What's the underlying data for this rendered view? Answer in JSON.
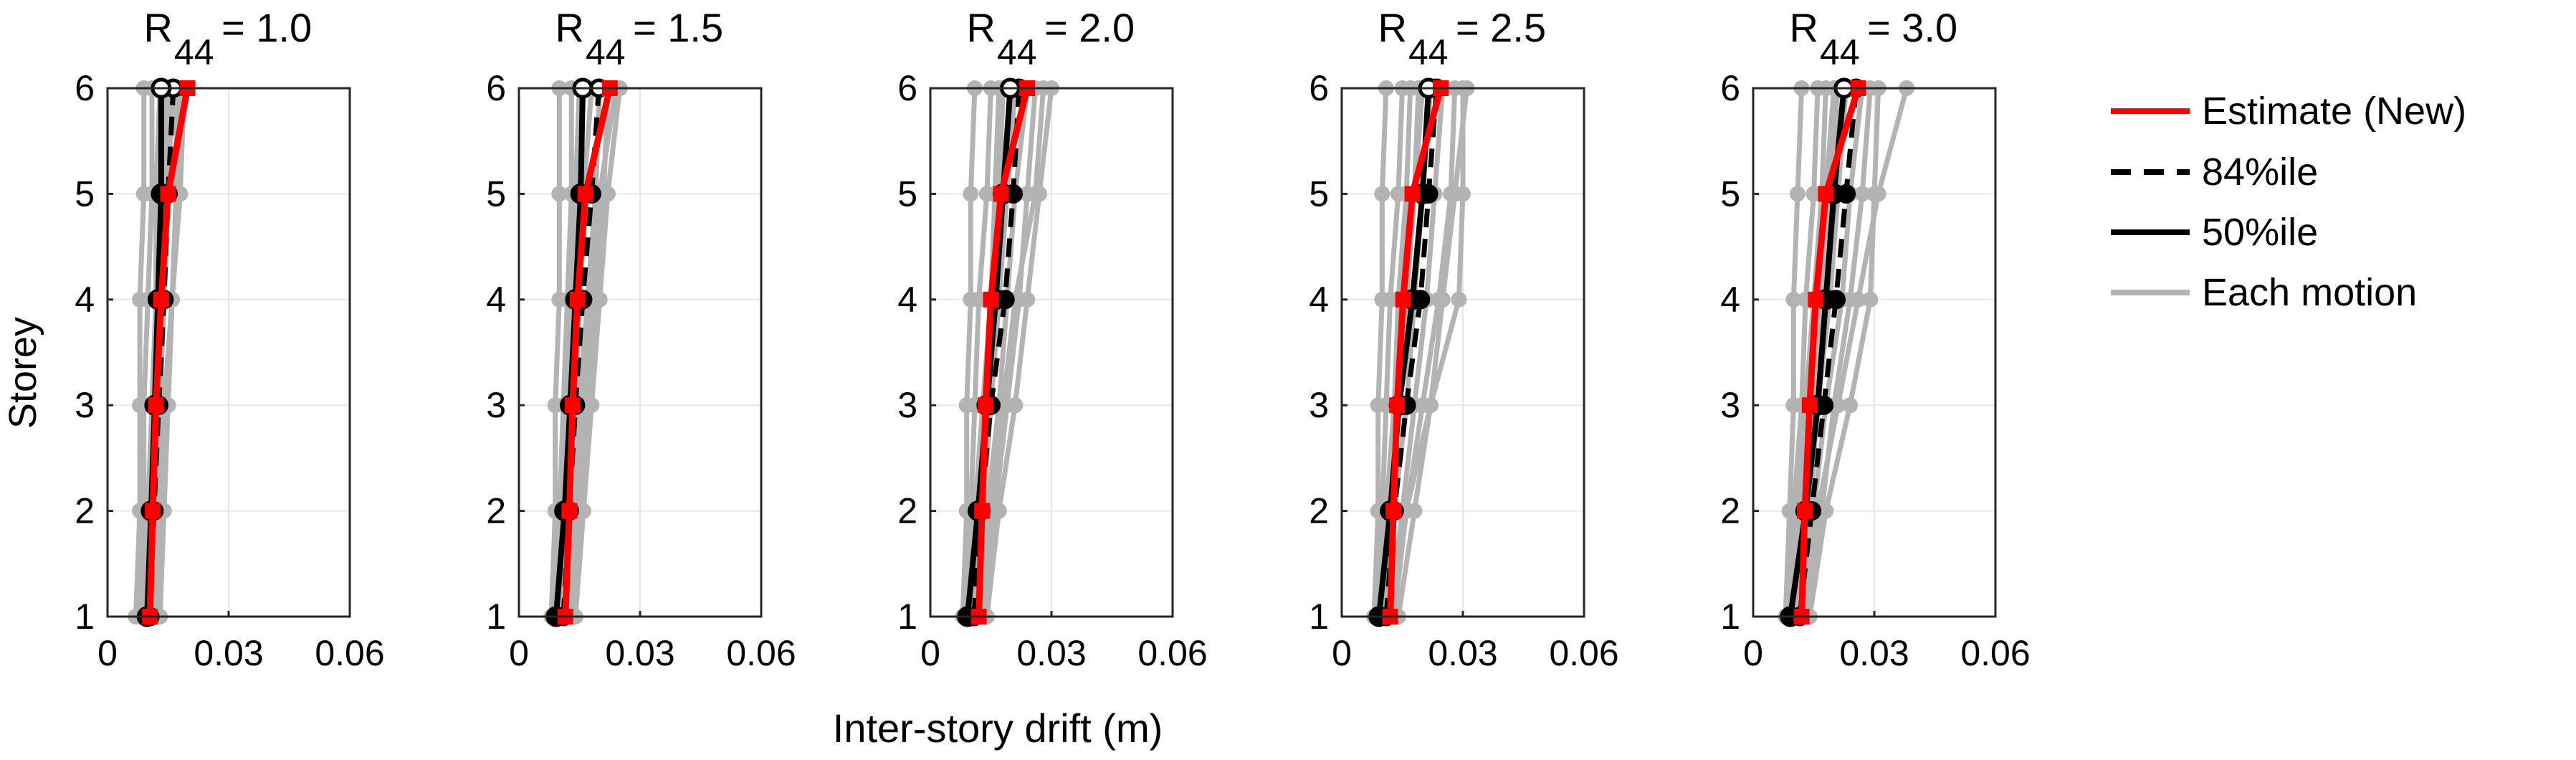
{
  "figure": {
    "ylabel": "Storey",
    "xlabel": "Inter-story drift (m)"
  },
  "legend": {
    "items": [
      {
        "label": "Estimate (New)",
        "color": "#ff0000",
        "style": "solid"
      },
      {
        "label": "84%ile",
        "color": "#000000",
        "style": "dashed"
      },
      {
        "label": "50%ile",
        "color": "#000000",
        "style": "solid"
      },
      {
        "label": "Each motion",
        "color": "#b3b3b3",
        "style": "solid"
      }
    ]
  },
  "colors": {
    "estimate": "#ff0000",
    "percentile": "#000000",
    "motion": "#b3b3b3",
    "grid": "#e6e6e6"
  },
  "chart_data": [
    {
      "type": "line",
      "title_base": "R",
      "title_sub": "44",
      "title_value": "= 1.0",
      "x_ticks": [
        "0",
        "0.03",
        "0.06"
      ],
      "y_ticks": [
        "1",
        "2",
        "3",
        "4",
        "5",
        "6"
      ],
      "xlim": [
        0,
        0.06
      ],
      "ylim": [
        1,
        6
      ],
      "grid": true,
      "storeys": [
        1,
        2,
        3,
        4,
        5,
        6
      ],
      "series": [
        {
          "name": "Estimate (New)",
          "values": [
            0.0105,
            0.0112,
            0.012,
            0.0133,
            0.015,
            0.0198
          ]
        },
        {
          "name": "84%ile",
          "values": [
            0.0105,
            0.0115,
            0.0127,
            0.014,
            0.015,
            0.0163
          ]
        },
        {
          "name": "50%ile",
          "values": [
            0.0098,
            0.0108,
            0.0117,
            0.0125,
            0.0133,
            0.0133
          ]
        }
      ],
      "motions": [
        [
          0.007,
          0.008,
          0.008,
          0.008,
          0.009,
          0.009
        ],
        [
          0.008,
          0.009,
          0.009,
          0.01,
          0.011,
          0.011
        ],
        [
          0.009,
          0.01,
          0.011,
          0.012,
          0.012,
          0.013
        ],
        [
          0.01,
          0.011,
          0.012,
          0.013,
          0.014,
          0.015
        ],
        [
          0.011,
          0.012,
          0.013,
          0.014,
          0.015,
          0.016
        ],
        [
          0.012,
          0.013,
          0.014,
          0.016,
          0.017,
          0.018
        ],
        [
          0.011,
          0.013,
          0.015,
          0.016,
          0.017,
          0.017
        ],
        [
          0.009,
          0.01,
          0.012,
          0.013,
          0.014,
          0.014
        ],
        [
          0.008,
          0.01,
          0.011,
          0.012,
          0.013,
          0.013
        ],
        [
          0.013,
          0.014,
          0.015,
          0.016,
          0.018,
          0.019
        ]
      ]
    },
    {
      "type": "line",
      "title_base": "R",
      "title_sub": "44",
      "title_value": "= 1.5",
      "x_ticks": [
        "0",
        "0.03",
        "0.06"
      ],
      "y_ticks": [
        "1",
        "2",
        "3",
        "4",
        "5",
        "6"
      ],
      "xlim": [
        0,
        0.06
      ],
      "ylim": [
        1,
        6
      ],
      "grid": true,
      "storeys": [
        1,
        2,
        3,
        4,
        5,
        6
      ],
      "series": [
        {
          "name": "Estimate (New)",
          "values": [
            0.0115,
            0.0125,
            0.0133,
            0.0145,
            0.0165,
            0.0225
          ]
        },
        {
          "name": "84%ile",
          "values": [
            0.011,
            0.0125,
            0.014,
            0.0158,
            0.018,
            0.0198
          ]
        },
        {
          "name": "50%ile",
          "values": [
            0.0092,
            0.0113,
            0.0127,
            0.014,
            0.0153,
            0.0158
          ]
        }
      ],
      "motions": [
        [
          0.008,
          0.009,
          0.009,
          0.01,
          0.01,
          0.01
        ],
        [
          0.009,
          0.01,
          0.011,
          0.012,
          0.013,
          0.013
        ],
        [
          0.01,
          0.011,
          0.012,
          0.013,
          0.014,
          0.015
        ],
        [
          0.011,
          0.012,
          0.014,
          0.015,
          0.016,
          0.018
        ],
        [
          0.012,
          0.014,
          0.015,
          0.017,
          0.019,
          0.02
        ],
        [
          0.013,
          0.015,
          0.017,
          0.019,
          0.021,
          0.022
        ],
        [
          0.012,
          0.015,
          0.016,
          0.018,
          0.02,
          0.024
        ],
        [
          0.01,
          0.012,
          0.013,
          0.014,
          0.015,
          0.016
        ],
        [
          0.009,
          0.011,
          0.012,
          0.013,
          0.014,
          0.015
        ],
        [
          0.014,
          0.016,
          0.018,
          0.02,
          0.022,
          0.025
        ]
      ]
    },
    {
      "type": "line",
      "title_base": "R",
      "title_sub": "44",
      "title_value": "= 2.0",
      "x_ticks": [
        "0",
        "0.03",
        "0.06"
      ],
      "y_ticks": [
        "1",
        "2",
        "3",
        "4",
        "5",
        "6"
      ],
      "xlim": [
        0,
        0.06
      ],
      "ylim": [
        1,
        6
      ],
      "grid": true,
      "storeys": [
        1,
        2,
        3,
        4,
        5,
        6
      ],
      "series": [
        {
          "name": "Estimate (New)",
          "values": [
            0.012,
            0.0128,
            0.0137,
            0.015,
            0.0175,
            0.024
          ]
        },
        {
          "name": "84%ile",
          "values": [
            0.0108,
            0.0125,
            0.015,
            0.0185,
            0.0205,
            0.022
          ]
        },
        {
          "name": "50%ile",
          "values": [
            0.0092,
            0.0118,
            0.014,
            0.0162,
            0.018,
            0.0198
          ]
        }
      ],
      "motions": [
        [
          0.008,
          0.009,
          0.009,
          0.01,
          0.01,
          0.011
        ],
        [
          0.009,
          0.01,
          0.011,
          0.012,
          0.014,
          0.015
        ],
        [
          0.01,
          0.012,
          0.013,
          0.015,
          0.017,
          0.018
        ],
        [
          0.011,
          0.013,
          0.015,
          0.017,
          0.019,
          0.021
        ],
        [
          0.012,
          0.014,
          0.017,
          0.019,
          0.021,
          0.024
        ],
        [
          0.013,
          0.016,
          0.019,
          0.022,
          0.024,
          0.026
        ],
        [
          0.012,
          0.015,
          0.018,
          0.021,
          0.026,
          0.028
        ],
        [
          0.01,
          0.012,
          0.014,
          0.016,
          0.018,
          0.02
        ],
        [
          0.009,
          0.011,
          0.013,
          0.015,
          0.016,
          0.017
        ],
        [
          0.014,
          0.017,
          0.021,
          0.024,
          0.027,
          0.03
        ]
      ]
    },
    {
      "type": "line",
      "title_base": "R",
      "title_sub": "44",
      "title_value": "= 2.5",
      "x_ticks": [
        "0",
        "0.03",
        "0.06"
      ],
      "y_ticks": [
        "1",
        "2",
        "3",
        "4",
        "5",
        "6"
      ],
      "xlim": [
        0,
        0.06
      ],
      "ylim": [
        1,
        6
      ],
      "grid": true,
      "storeys": [
        1,
        2,
        3,
        4,
        5,
        6
      ],
      "series": [
        {
          "name": "Estimate (New)",
          "values": [
            0.012,
            0.0128,
            0.0137,
            0.0152,
            0.0175,
            0.0245
          ]
        },
        {
          "name": "84%ile",
          "values": [
            0.011,
            0.013,
            0.016,
            0.0195,
            0.0215,
            0.0235
          ]
        },
        {
          "name": "50%ile",
          "values": [
            0.0092,
            0.012,
            0.0142,
            0.0175,
            0.02,
            0.0215
          ]
        }
      ],
      "motions": [
        [
          0.008,
          0.009,
          0.009,
          0.01,
          0.01,
          0.011
        ],
        [
          0.009,
          0.01,
          0.011,
          0.012,
          0.014,
          0.015
        ],
        [
          0.01,
          0.012,
          0.014,
          0.016,
          0.018,
          0.019
        ],
        [
          0.011,
          0.013,
          0.016,
          0.018,
          0.02,
          0.022
        ],
        [
          0.012,
          0.015,
          0.018,
          0.021,
          0.023,
          0.025
        ],
        [
          0.013,
          0.016,
          0.02,
          0.024,
          0.027,
          0.028
        ],
        [
          0.012,
          0.016,
          0.022,
          0.029,
          0.03,
          0.03
        ],
        [
          0.01,
          0.012,
          0.014,
          0.016,
          0.018,
          0.02
        ],
        [
          0.009,
          0.011,
          0.013,
          0.014,
          0.016,
          0.017
        ],
        [
          0.014,
          0.018,
          0.022,
          0.025,
          0.028,
          0.031
        ]
      ]
    },
    {
      "type": "line",
      "title_base": "R",
      "title_sub": "44",
      "title_value": "= 3.0",
      "x_ticks": [
        "0",
        "0.03",
        "0.06"
      ],
      "y_ticks": [
        "1",
        "2",
        "3",
        "4",
        "5",
        "6"
      ],
      "xlim": [
        0,
        0.06
      ],
      "ylim": [
        1,
        6
      ],
      "grid": true,
      "storeys": [
        1,
        2,
        3,
        4,
        5,
        6
      ],
      "series": [
        {
          "name": "Estimate (New)",
          "values": [
            0.012,
            0.0128,
            0.014,
            0.0155,
            0.018,
            0.026
          ]
        },
        {
          "name": "84%ile",
          "values": [
            0.0115,
            0.0145,
            0.0175,
            0.0205,
            0.023,
            0.0255
          ]
        },
        {
          "name": "50%ile",
          "values": [
            0.0092,
            0.013,
            0.016,
            0.018,
            0.02,
            0.0225
          ]
        }
      ],
      "motions": [
        [
          0.008,
          0.009,
          0.01,
          0.01,
          0.011,
          0.012
        ],
        [
          0.009,
          0.01,
          0.012,
          0.013,
          0.015,
          0.016
        ],
        [
          0.01,
          0.012,
          0.014,
          0.016,
          0.018,
          0.02
        ],
        [
          0.011,
          0.014,
          0.016,
          0.019,
          0.021,
          0.023
        ],
        [
          0.012,
          0.015,
          0.018,
          0.022,
          0.024,
          0.027
        ],
        [
          0.013,
          0.017,
          0.02,
          0.024,
          0.027,
          0.029
        ],
        [
          0.012,
          0.016,
          0.021,
          0.026,
          0.031,
          0.038
        ],
        [
          0.01,
          0.013,
          0.015,
          0.017,
          0.019,
          0.021
        ],
        [
          0.009,
          0.011,
          0.013,
          0.015,
          0.017,
          0.018
        ],
        [
          0.014,
          0.018,
          0.024,
          0.029,
          0.03,
          0.031
        ]
      ]
    }
  ]
}
